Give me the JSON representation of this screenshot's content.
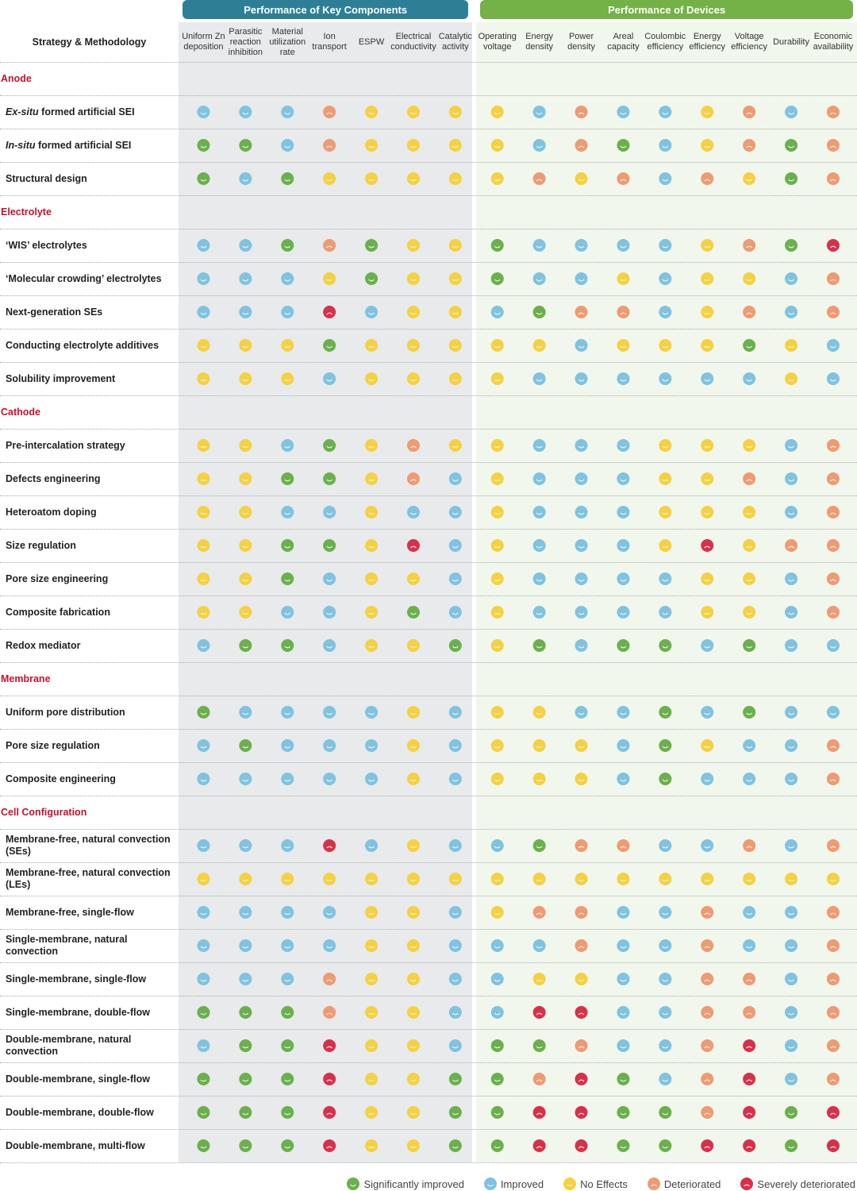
{
  "table": {
    "header": "Strategy & Methodology",
    "groups": [
      {
        "title": "Performance of Key Components",
        "color": "#2e7f96",
        "columns": [
          "Uniform Zn deposition",
          "Parasitic reaction inhibition",
          "Material utilization rate",
          "Ion transport",
          "ESPW",
          "Electrical conductivity",
          "Catalytic activity"
        ]
      },
      {
        "title": "Performance of Devices",
        "color": "#74b146",
        "columns": [
          "Operating voltage",
          "Energy density",
          "Power density",
          "Areal capacity",
          "Coulombic efficiency",
          "Energy efficiency",
          "Voltage efficiency",
          "Durability",
          "Economic availability"
        ]
      }
    ],
    "legend": [
      {
        "name": "Significantly improved",
        "color": "#6ab04c"
      },
      {
        "name": "Improved",
        "color": "#7fc3e0"
      },
      {
        "name": "No Effects",
        "color": "#f5d142"
      },
      {
        "name": "Deteriorated",
        "color": "#ef9a72"
      },
      {
        "name": "Severely deteriorated",
        "color": "#d9304a"
      }
    ],
    "sections": [
      {
        "name": "Anode",
        "rows": [
          {
            "label_italic": "Ex-situ",
            "label": "formed artificial SEI",
            "ratings": [
              1,
              1,
              1,
              3,
              2,
              2,
              2,
              2,
              1,
              3,
              1,
              1,
              2,
              3,
              1,
              3
            ]
          },
          {
            "label_italic": "In-situ",
            "label": "formed artificial SEI",
            "ratings": [
              0,
              0,
              1,
              3,
              2,
              2,
              2,
              2,
              1,
              3,
              0,
              1,
              2,
              3,
              0,
              3
            ]
          },
          {
            "label": "Structural design",
            "ratings": [
              0,
              1,
              0,
              2,
              2,
              2,
              2,
              2,
              3,
              2,
              3,
              1,
              3,
              2,
              0,
              3
            ]
          }
        ]
      },
      {
        "name": "Electrolyte",
        "rows": [
          {
            "label": "‘WIS’ electrolytes",
            "ratings": [
              1,
              1,
              0,
              3,
              0,
              2,
              2,
              0,
              1,
              1,
              1,
              1,
              2,
              3,
              0,
              4
            ]
          },
          {
            "label": "‘Molecular crowding’ electrolytes",
            "ratings": [
              1,
              1,
              1,
              2,
              0,
              2,
              2,
              0,
              1,
              1,
              2,
              1,
              2,
              2,
              1,
              3
            ]
          },
          {
            "label": "Next-generation SEs",
            "ratings": [
              1,
              1,
              1,
              4,
              1,
              2,
              2,
              1,
              0,
              3,
              3,
              1,
              2,
              3,
              1,
              3
            ]
          },
          {
            "label": "Conducting electrolyte additives",
            "ratings": [
              2,
              2,
              2,
              0,
              2,
              2,
              2,
              2,
              2,
              1,
              2,
              2,
              2,
              0,
              2,
              1
            ]
          },
          {
            "label": "Solubility improvement",
            "ratings": [
              2,
              2,
              2,
              1,
              2,
              2,
              2,
              2,
              1,
              1,
              1,
              1,
              1,
              1,
              2,
              1
            ]
          }
        ]
      },
      {
        "name": "Cathode",
        "rows": [
          {
            "label": "Pre-intercalation strategy",
            "ratings": [
              2,
              2,
              1,
              0,
              2,
              3,
              2,
              2,
              1,
              1,
              1,
              2,
              2,
              2,
              1,
              3
            ]
          },
          {
            "label": "Defects engineering",
            "ratings": [
              2,
              2,
              0,
              0,
              2,
              3,
              1,
              2,
              1,
              1,
              1,
              2,
              2,
              3,
              1,
              3
            ]
          },
          {
            "label": "Heteroatom doping",
            "ratings": [
              2,
              2,
              1,
              1,
              2,
              1,
              1,
              2,
              1,
              1,
              1,
              2,
              2,
              2,
              1,
              3
            ]
          },
          {
            "label": "Size regulation",
            "ratings": [
              2,
              2,
              0,
              0,
              2,
              4,
              1,
              2,
              1,
              1,
              1,
              2,
              4,
              2,
              3,
              3
            ]
          },
          {
            "label": "Pore size engineering",
            "ratings": [
              2,
              2,
              0,
              1,
              2,
              2,
              1,
              2,
              1,
              1,
              1,
              1,
              2,
              2,
              1,
              3
            ]
          },
          {
            "label": "Composite fabrication",
            "ratings": [
              2,
              2,
              1,
              1,
              2,
              0,
              1,
              2,
              1,
              1,
              1,
              1,
              2,
              2,
              1,
              3
            ]
          },
          {
            "label": "Redox mediator",
            "ratings": [
              1,
              0,
              0,
              1,
              2,
              2,
              0,
              2,
              0,
              1,
              0,
              0,
              1,
              0,
              1,
              1
            ]
          }
        ]
      },
      {
        "name": "Membrane",
        "rows": [
          {
            "label": "Uniform pore distribution",
            "ratings": [
              0,
              1,
              1,
              1,
              1,
              2,
              1,
              2,
              2,
              1,
              1,
              0,
              1,
              0,
              1,
              1
            ]
          },
          {
            "label": "Pore size regulation",
            "ratings": [
              1,
              0,
              1,
              1,
              1,
              2,
              1,
              2,
              2,
              2,
              1,
              0,
              2,
              1,
              1,
              3
            ]
          },
          {
            "label": "Composite engineering",
            "ratings": [
              1,
              1,
              1,
              1,
              1,
              2,
              1,
              2,
              2,
              2,
              1,
              0,
              1,
              1,
              1,
              3
            ]
          }
        ]
      },
      {
        "name": "Cell Configuration",
        "rows": [
          {
            "label": "Membrane-free, natural convection (SEs)",
            "ratings": [
              1,
              1,
              1,
              4,
              1,
              2,
              1,
              1,
              0,
              3,
              3,
              1,
              1,
              3,
              1,
              3
            ]
          },
          {
            "label": "Membrane-free, natural convection (LEs)",
            "ratings": [
              2,
              2,
              2,
              2,
              2,
              2,
              2,
              2,
              2,
              2,
              2,
              2,
              2,
              2,
              2,
              2
            ]
          },
          {
            "label": "Membrane-free, single-flow",
            "ratings": [
              1,
              1,
              1,
              1,
              2,
              2,
              1,
              2,
              3,
              3,
              1,
              1,
              3,
              1,
              1,
              3
            ]
          },
          {
            "label": "Single-membrane, natural convection",
            "ratings": [
              1,
              1,
              1,
              1,
              2,
              2,
              1,
              1,
              1,
              3,
              1,
              1,
              3,
              1,
              1,
              3
            ]
          },
          {
            "label": "Single-membrane, single-flow",
            "ratings": [
              1,
              1,
              1,
              3,
              2,
              2,
              1,
              1,
              2,
              2,
              1,
              1,
              3,
              3,
              1,
              3
            ]
          },
          {
            "label": "Single-membrane, double-flow",
            "ratings": [
              0,
              0,
              0,
              3,
              2,
              2,
              1,
              1,
              4,
              4,
              1,
              1,
              3,
              3,
              1,
              3
            ]
          },
          {
            "label": "Double-membrane, natural convection",
            "ratings": [
              1,
              0,
              0,
              4,
              2,
              2,
              1,
              0,
              0,
              3,
              1,
              1,
              3,
              4,
              1,
              3
            ]
          },
          {
            "label": "Double-membrane, single-flow",
            "ratings": [
              0,
              0,
              0,
              4,
              2,
              2,
              0,
              0,
              3,
              4,
              0,
              1,
              3,
              4,
              1,
              3
            ]
          },
          {
            "label": "Double-membrane, double-flow",
            "ratings": [
              0,
              0,
              0,
              4,
              2,
              2,
              0,
              0,
              4,
              4,
              0,
              0,
              3,
              4,
              0,
              4
            ]
          },
          {
            "label": "Double-membrane, multi-flow",
            "ratings": [
              0,
              0,
              0,
              4,
              2,
              2,
              0,
              0,
              4,
              4,
              0,
              0,
              4,
              4,
              0,
              4
            ]
          }
        ]
      }
    ]
  }
}
